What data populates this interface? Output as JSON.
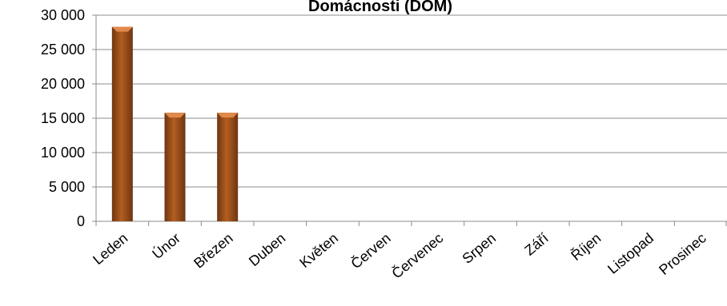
{
  "chart_data": {
    "type": "bar",
    "title": "Domácnosti (DOM)",
    "categories": [
      "Leden",
      "Únor",
      "Březen",
      "Duben",
      "Květen",
      "Červen",
      "Červenec",
      "Srpen",
      "Září",
      "Říjen",
      "Listopad",
      "Prosinec"
    ],
    "values": [
      28300,
      15800,
      15800,
      null,
      null,
      null,
      null,
      null,
      null,
      null,
      null,
      null
    ],
    "ylim": [
      0,
      30000
    ],
    "yticks": [
      0,
      5000,
      10000,
      15000,
      20000,
      25000,
      30000
    ],
    "ytick_labels": [
      "0",
      "5 000",
      "10 000",
      "15 000",
      "20 000",
      "25 000",
      "30 000"
    ],
    "grid": true,
    "bar_color": "#a0521a",
    "bar_top_color": "#e0894a"
  }
}
